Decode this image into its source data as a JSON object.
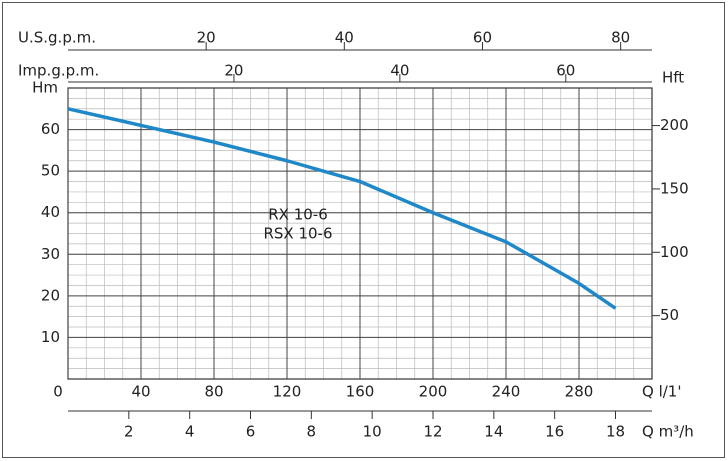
{
  "chart_data": {
    "type": "line",
    "x": [
      0,
      40,
      80,
      120,
      160,
      200,
      240,
      280,
      300
    ],
    "series": [
      {
        "color": "#1f88c9",
        "values": [
          65,
          61,
          57,
          52.5,
          47.5,
          40,
          33,
          23,
          17
        ]
      }
    ],
    "xlim": [
      0,
      320
    ],
    "xticks": [
      0,
      40,
      80,
      120,
      160,
      200,
      240,
      280
    ],
    "xlabel": "Q  l/1'",
    "ylim": [
      0,
      70
    ],
    "yticks": [
      10,
      20,
      30,
      40,
      50,
      60
    ],
    "ylabel": "Hm",
    "y2lim": [
      0,
      229.66
    ],
    "y2ticks": [
      50,
      100,
      150,
      200
    ],
    "y2label": "Hft",
    "grid": true,
    "annotations": [
      "RX 10-6",
      "RSX 10-6"
    ],
    "secondary_x": [
      {
        "label": "Q  m³/h",
        "xlim": [
          0,
          19.2
        ],
        "xticks": [
          2,
          4,
          6,
          8,
          10,
          12,
          14,
          16,
          18
        ]
      },
      {
        "label": "U.S.g.p.m.",
        "xlim": [
          0,
          84.54
        ],
        "xticks": [
          20,
          40,
          60,
          80
        ]
      },
      {
        "label": "Imp.g.p.m.",
        "xlim": [
          0,
          70.39
        ],
        "xticks": [
          20,
          40,
          60
        ]
      }
    ]
  }
}
